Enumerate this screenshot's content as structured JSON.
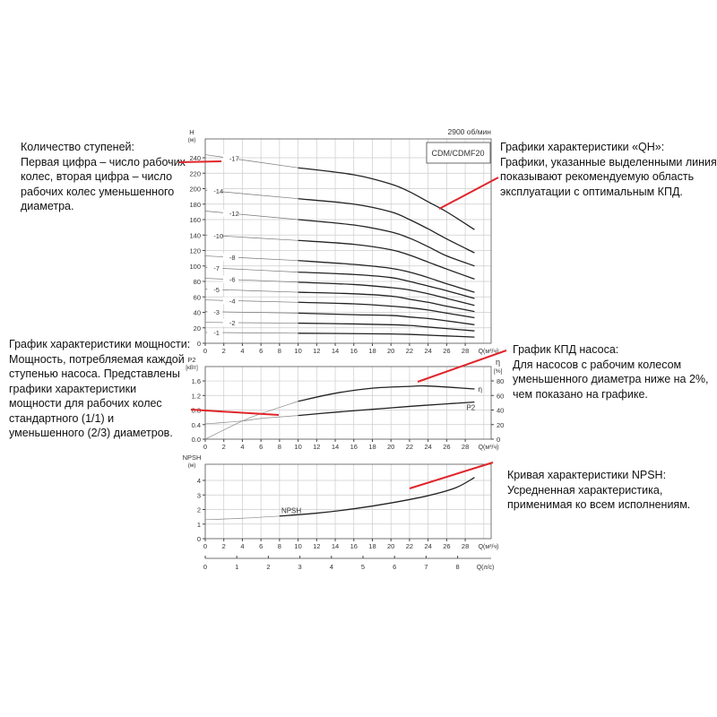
{
  "annotations": {
    "stages": [
      "Количество ступеней:",
      "Первая цифра – число рабочих",
      "колес, вторая цифра – число",
      "рабочих колес уменьшенного",
      "диаметра."
    ],
    "qh": [
      "Графики характеристики «QH»:",
      "Графики, указанные выделенными линиями,",
      "показывают рекомендуемую область",
      "эксплуатации с оптимальным КПД."
    ],
    "power": [
      "График характеристики мощности:",
      "Мощность, потребляемая каждой",
      "ступенью насоса. Представлены",
      "графики характеристики",
      "мощности для рабочих колес",
      "стандартного (1/1) и",
      "уменьшенного (2/3) диаметров."
    ],
    "efficiency": [
      "График КПД насоса:",
      "Для насосов с рабочим колесом",
      "уменьшенного диаметра ниже на 2%,",
      "чем показано на графике."
    ],
    "npsh": [
      "Кривая характеристики NPSH:",
      "Усредненная характеристика,",
      "применимая ко всем исполнениям."
    ]
  },
  "colors": {
    "annotation_line": "#e0252b",
    "curve": "#222222",
    "grid": "#cccccc"
  },
  "chart_data": [
    {
      "type": "line",
      "title": "CDM/CDMF20",
      "subtitle": "2900 об/мин",
      "ylabel": "H",
      "yunit": "(м)",
      "xlabel": "Q(м³/ч)",
      "xlim": [
        0,
        31
      ],
      "ylim": [
        0,
        264
      ],
      "xticks": [
        0,
        2,
        4,
        6,
        8,
        10,
        12,
        14,
        16,
        18,
        20,
        22,
        24,
        26,
        28
      ],
      "yticks": [
        0,
        20,
        40,
        60,
        80,
        100,
        120,
        140,
        160,
        180,
        200,
        220,
        240
      ],
      "grid": true,
      "x": [
        0,
        10,
        16,
        20,
        22,
        24,
        26,
        29
      ],
      "series": [
        {
          "name": "-17",
          "values": [
            244,
            227,
            218,
            206,
            196,
            183,
            170,
            147
          ]
        },
        {
          "name": "-14",
          "values": [
            198,
            187,
            180,
            170,
            160,
            148,
            135,
            117
          ]
        },
        {
          "name": "-12",
          "values": [
            171,
            160,
            153,
            144,
            136,
            125,
            113,
            100
          ]
        },
        {
          "name": "-10",
          "values": [
            140,
            133,
            128,
            121,
            114,
            105,
            96,
            83
          ]
        },
        {
          "name": "-8",
          "values": [
            113,
            107,
            102,
            97,
            92,
            85,
            77,
            66
          ]
        },
        {
          "name": "-7",
          "values": [
            98,
            92,
            89,
            85,
            80,
            74,
            68,
            58
          ]
        },
        {
          "name": "-6",
          "values": [
            84,
            79,
            76,
            72,
            69,
            64,
            58,
            49
          ]
        },
        {
          "name": "-5",
          "values": [
            70,
            66,
            64,
            61,
            57,
            53,
            48,
            41
          ]
        },
        {
          "name": "-4",
          "values": [
            56,
            53,
            51,
            48,
            46,
            43,
            39,
            33
          ]
        },
        {
          "name": "-3",
          "values": [
            41,
            39,
            37,
            36,
            34,
            32,
            29,
            24
          ]
        },
        {
          "name": "-2",
          "values": [
            27,
            26,
            25,
            24,
            23,
            21,
            19,
            16
          ]
        },
        {
          "name": "-1",
          "values": [
            14,
            13,
            12.5,
            12,
            11.5,
            10.5,
            9.5,
            8
          ]
        }
      ]
    },
    {
      "type": "line",
      "ylabel": "P2",
      "yunit": "[кВт]",
      "y2label": "η",
      "y2unit": "[%]",
      "xlabel": "Q(м³/ч)",
      "xlim": [
        0,
        31
      ],
      "ylim": [
        0,
        2.0
      ],
      "y2lim": [
        0,
        100
      ],
      "xticks": [
        0,
        2,
        4,
        6,
        8,
        10,
        12,
        14,
        16,
        18,
        20,
        22,
        24,
        26,
        28
      ],
      "yticks": [
        "0.0",
        "0.4",
        "0.8",
        "1.2",
        "1.6"
      ],
      "y2ticks": [
        0,
        20,
        40,
        60,
        80
      ],
      "grid": true,
      "series": [
        {
          "name": "η",
          "axis": "right",
          "x": [
            0,
            4,
            6,
            10,
            14,
            18,
            22,
            24,
            29
          ],
          "values": [
            0,
            25,
            35,
            52,
            63,
            70,
            72.5,
            73,
            69
          ]
        },
        {
          "name": "P2",
          "axis": "left",
          "x": [
            0,
            4,
            6,
            10,
            14,
            18,
            22,
            26,
            29
          ],
          "values": [
            0.42,
            0.5,
            0.57,
            0.65,
            0.74,
            0.82,
            0.9,
            0.97,
            1.02
          ]
        }
      ]
    },
    {
      "type": "line",
      "ylabel": "NPSH",
      "yunit": "(м)",
      "xlabel": "Q(м³/ч)",
      "x2label": "Q(л/с)",
      "xlim": [
        0,
        31
      ],
      "ylim": [
        0,
        5.1
      ],
      "xticks": [
        0,
        2,
        4,
        6,
        8,
        10,
        12,
        14,
        16,
        18,
        20,
        22,
        24,
        26,
        28
      ],
      "x2ticks": [
        0,
        1,
        2,
        3,
        4,
        5,
        6,
        7,
        8
      ],
      "yticks": [
        0,
        1,
        2,
        3,
        4
      ],
      "grid": true,
      "series": [
        {
          "name": "NPSH",
          "x": [
            0,
            4,
            8,
            12,
            16,
            20,
            24,
            27,
            29
          ],
          "values": [
            1.3,
            1.4,
            1.55,
            1.75,
            2.05,
            2.45,
            2.95,
            3.5,
            4.2
          ]
        }
      ]
    }
  ]
}
